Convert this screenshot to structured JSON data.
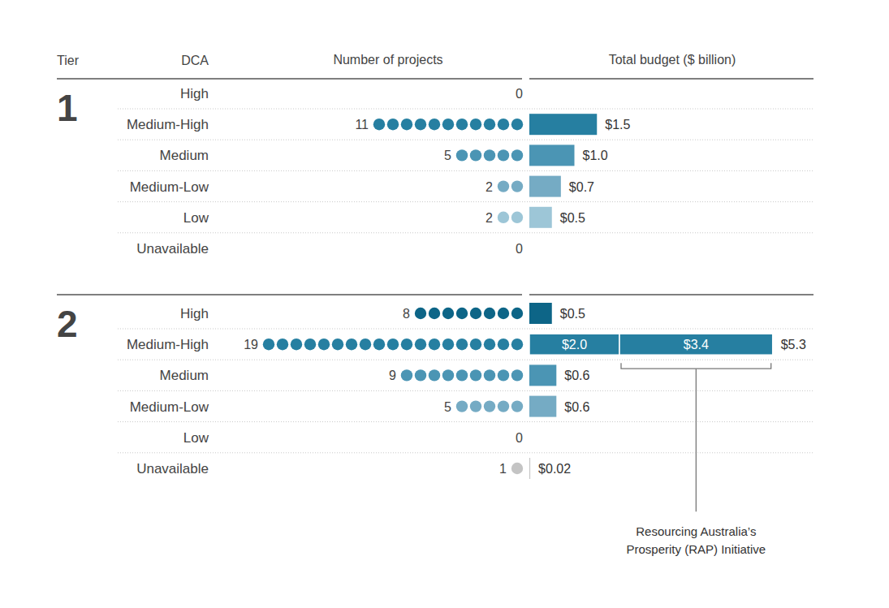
{
  "chart_data": {
    "type": "dot_bar",
    "headers": {
      "tier": "Tier",
      "dca": "DCA",
      "count": "Number of projects",
      "budget": "Total budget ($ billion)"
    },
    "tick_labels": false,
    "tiers": [
      {
        "name": "1",
        "rows": [
          {
            "category": "High",
            "count": 0,
            "color": "#0d6587",
            "budget": null
          },
          {
            "category": "Medium-High",
            "count": 11,
            "color": "#267fa1",
            "budget": 1.5,
            "budget_label": "$1.5"
          },
          {
            "category": "Medium",
            "count": 5,
            "color": "#4b95b4",
            "budget": 1.0,
            "budget_label": "$1.0"
          },
          {
            "category": "Medium-Low",
            "count": 2,
            "color": "#75abc4",
            "budget": 0.7,
            "budget_label": "$0.7"
          },
          {
            "category": "Low",
            "count": 2,
            "color": "#9dc6d7",
            "budget": 0.5,
            "budget_label": "$0.5"
          },
          {
            "category": "Unavailable",
            "count": 0,
            "color": "#c4c4c4",
            "budget": null
          }
        ]
      },
      {
        "name": "2",
        "rows": [
          {
            "category": "High",
            "count": 8,
            "color": "#0d6587",
            "budget": 0.5,
            "budget_label": "$0.5"
          },
          {
            "category": "Medium-High",
            "count": 19,
            "color": "#267fa1",
            "budget": 5.3,
            "budget_label": "$5.3",
            "segments": [
              2.0,
              3.4
            ],
            "segment_labels": [
              "$2.0",
              "$3.4"
            ],
            "annotation": [
              "Resourcing Australia’s",
              "Prosperity (RAP) Initiative"
            ]
          },
          {
            "category": "Medium",
            "count": 9,
            "color": "#4b95b4",
            "budget": 0.6,
            "budget_label": "$0.6"
          },
          {
            "category": "Medium-Low",
            "count": 5,
            "color": "#75abc4",
            "budget": 0.6,
            "budget_label": "$0.6"
          },
          {
            "category": "Low",
            "count": 0,
            "color": "#9dc6d7",
            "budget": null
          },
          {
            "category": "Unavailable",
            "count": 1,
            "color": "#c4c4c4",
            "budget": 0.02,
            "budget_label": "$0.02"
          }
        ]
      }
    ]
  }
}
